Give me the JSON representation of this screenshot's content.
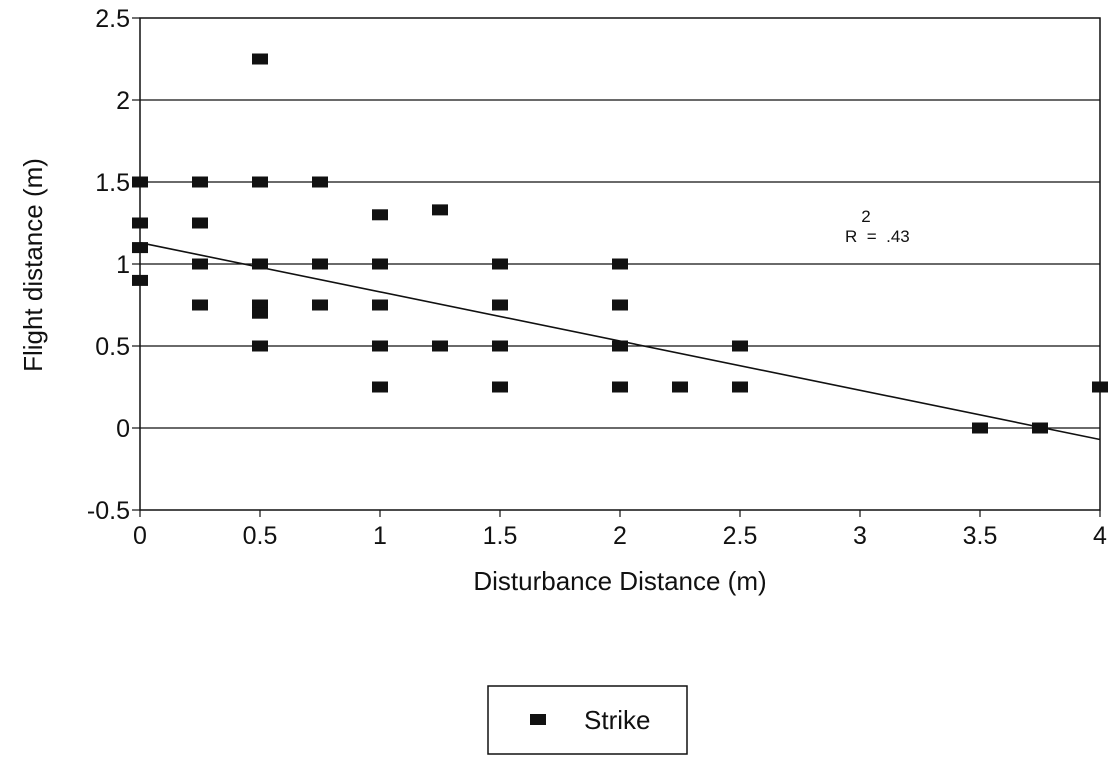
{
  "chart_data": {
    "type": "scatter",
    "title": "",
    "xlabel": "Disturbance Distance (m)",
    "ylabel": "Flight distance (m)",
    "xlim": [
      0,
      4
    ],
    "ylim": [
      -0.5,
      2.5
    ],
    "x_ticks": [
      "0",
      "0.5",
      "1",
      "1.5",
      "2",
      "2.5",
      "3",
      "3.5",
      "4"
    ],
    "y_ticks": [
      "-0.5",
      "0",
      "0.5",
      "1",
      "1.5",
      "2",
      "2.5"
    ],
    "grid": "horizontal",
    "legend_position": "bottom-center",
    "series": [
      {
        "name": "Strike",
        "marker": "square",
        "color": "#111111",
        "points": [
          [
            0,
            1.5
          ],
          [
            0,
            1.25
          ],
          [
            0,
            1.1
          ],
          [
            0,
            0.9
          ],
          [
            0.25,
            1.5
          ],
          [
            0.25,
            1.25
          ],
          [
            0.25,
            1.0
          ],
          [
            0.25,
            0.75
          ],
          [
            0.5,
            2.25
          ],
          [
            0.5,
            1.5
          ],
          [
            0.5,
            1.0
          ],
          [
            0.5,
            0.75
          ],
          [
            0.5,
            0.7
          ],
          [
            0.5,
            0.5
          ],
          [
            0.75,
            1.5
          ],
          [
            0.75,
            1.0
          ],
          [
            0.75,
            0.75
          ],
          [
            1,
            1.3
          ],
          [
            1,
            1.0
          ],
          [
            1,
            0.75
          ],
          [
            1,
            0.5
          ],
          [
            1,
            0.25
          ],
          [
            1.25,
            1.33
          ],
          [
            1.25,
            0.5
          ],
          [
            1.5,
            1.0
          ],
          [
            1.5,
            0.75
          ],
          [
            1.5,
            0.5
          ],
          [
            1.5,
            0.25
          ],
          [
            2,
            1.0
          ],
          [
            2,
            0.75
          ],
          [
            2,
            0.5
          ],
          [
            2,
            0.25
          ],
          [
            2.25,
            0.25
          ],
          [
            2.5,
            0.5
          ],
          [
            2.5,
            0.25
          ],
          [
            3.5,
            0.0
          ],
          [
            3.75,
            0.0
          ],
          [
            4,
            0.25
          ]
        ]
      }
    ],
    "trendline": {
      "x": [
        0,
        4
      ],
      "y": [
        1.13,
        -0.07
      ]
    },
    "annotation": {
      "exponent": "2",
      "text": "R  =  .43"
    }
  }
}
